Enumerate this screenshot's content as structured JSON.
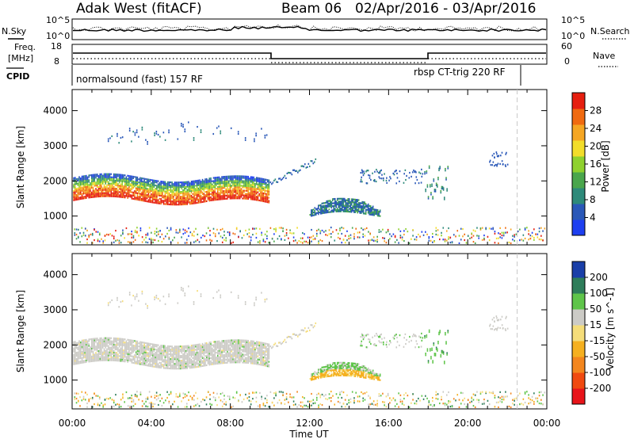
{
  "header": {
    "radar": "Adak West (fitACF)",
    "beam": "Beam 06",
    "dates": "02/Apr/2016 - 03/Apr/2016"
  },
  "strip": {
    "nsky_label": "N.Sky",
    "nsearch_label": "N.Search",
    "noise_ticks_left": [
      "10^5",
      "10^0"
    ],
    "noise_ticks_right": [
      "10^5",
      "10^0"
    ],
    "freq_label_1": "Freq.",
    "freq_label_2": "[MHz]",
    "freq_ticks": [
      "18",
      "8"
    ],
    "nave_label": "Nave",
    "nave_ticks": [
      "60",
      "0"
    ],
    "cpid_label": "CPID",
    "cpid_1": "normalsound (fast) 157 RF",
    "cpid_2": "rbsp CT-trig 220 RF"
  },
  "colors": {
    "power": [
      "#1e3ff0",
      "#2a58b8",
      "#2e8a7a",
      "#4aa64c",
      "#8fd12e",
      "#f2dd2a",
      "#f5a623",
      "#f06a10",
      "#e61f10"
    ],
    "velocity": [
      "#e8141a",
      "#f04a10",
      "#f3861e",
      "#f5b020",
      "#f5dd7a",
      "#cccbc6",
      "#5fc54a",
      "#2e7d5a",
      "#1a3fa8"
    ]
  },
  "chart_data": [
    {
      "type": "heatmap",
      "title": "Power",
      "ylabel": "Slant Range [km]",
      "xlabel": "Time UT",
      "x_ticks": [
        "00:00",
        "04:00",
        "08:00",
        "12:00",
        "16:00",
        "20:00",
        "00:00"
      ],
      "y_ticks": [
        1000,
        2000,
        3000,
        4000
      ],
      "ylim": [
        180,
        4600
      ],
      "colorbar_label": "Power [dB]",
      "colorbar_ticks": [
        4,
        8,
        12,
        16,
        20,
        24,
        28
      ],
      "colorbar_range": [
        0,
        32
      ],
      "echo_regions": [
        {
          "t": [
            0,
            10
          ],
          "range": [
            1350,
            2100
          ],
          "level": "high"
        },
        {
          "t": [
            1.5,
            10
          ],
          "range": [
            2900,
            3600
          ],
          "level": "low"
        },
        {
          "t": [
            10,
            12
          ],
          "range": [
            1900,
            2400
          ],
          "level": "low"
        },
        {
          "t": [
            12,
            15.5
          ],
          "range": [
            900,
            1450
          ],
          "level": "medium"
        },
        {
          "t": [
            17.8,
            19
          ],
          "range": [
            1500,
            2400
          ],
          "level": "medium"
        }
      ]
    },
    {
      "type": "heatmap",
      "title": "Velocity",
      "ylabel": "Slant Range [km]",
      "xlabel": "Time UT",
      "x_ticks": [
        "00:00",
        "04:00",
        "08:00",
        "12:00",
        "16:00",
        "20:00",
        "00:00"
      ],
      "y_ticks": [
        1000,
        2000,
        3000,
        4000
      ],
      "ylim": [
        180,
        4600
      ],
      "colorbar_label": "Velocity [m s^-1]",
      "colorbar_ticks": [
        200,
        100,
        50,
        15,
        -15,
        -50,
        -100,
        -200
      ],
      "colorbar_range": [
        -250,
        250
      ],
      "echo_regions": [
        {
          "t": [
            0,
            10
          ],
          "range": [
            1350,
            2100
          ],
          "velocity": 0
        },
        {
          "t": [
            12,
            15.5
          ],
          "range": [
            900,
            1450
          ],
          "velocity": 40
        },
        {
          "t": [
            17.8,
            19
          ],
          "range": [
            1500,
            2400
          ],
          "velocity": 60
        }
      ]
    }
  ]
}
